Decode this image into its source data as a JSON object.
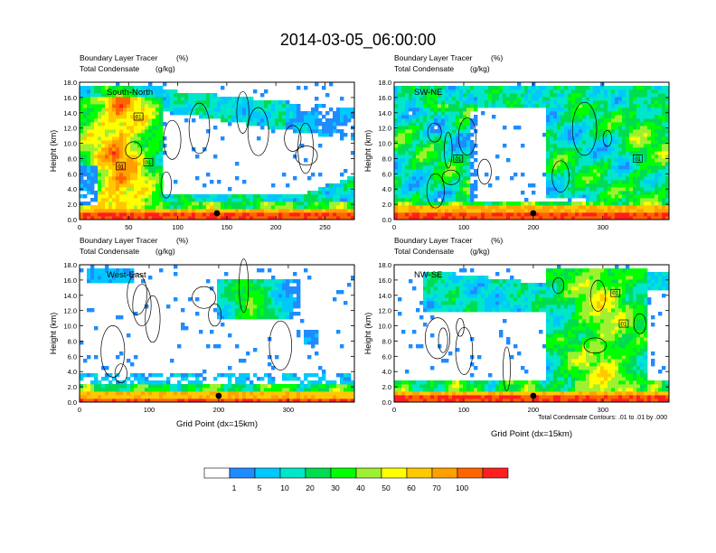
{
  "title": "2014-03-05_06:00:00",
  "chart_data": [
    {
      "type": "heatmap",
      "panel": "top-left",
      "label": "South-North",
      "title_line1": "Boundary Layer Tracer",
      "title_units1": "(%)",
      "title_line2": "Total Condensate",
      "title_units2": "(g/kg)",
      "ylabel": "Height (km)",
      "xlabel": "",
      "ylim": [
        0,
        18
      ],
      "yticks": [
        "0.0",
        "2.0",
        "4.0",
        "6.0",
        "8.0",
        "10.0",
        "12.0",
        "14.0",
        "16.0",
        "18.0"
      ],
      "xlim": [
        0,
        280
      ],
      "xticks": [
        "0",
        "50",
        "100",
        "150",
        "200",
        "250"
      ],
      "marker_x": 140,
      "contour_labels": [
        {
          "x": 60,
          "y": 13.5,
          "text": "01"
        },
        {
          "x": 42,
          "y": 7.0,
          "text": "01"
        },
        {
          "x": 70,
          "y": 7.5,
          "text": "01"
        }
      ]
    },
    {
      "type": "heatmap",
      "panel": "top-right",
      "label": "SW-NE",
      "title_line1": "Boundary Layer Tracer",
      "title_units1": "(%)",
      "title_line2": "Total Condensate",
      "title_units2": "(g/kg)",
      "ylabel": "Height (km)",
      "xlabel": "",
      "ylim": [
        0,
        18
      ],
      "yticks": [
        "0.0",
        "2.0",
        "4.0",
        "6.0",
        "8.0",
        "10.0",
        "12.0",
        "14.0",
        "16.0",
        "18.0"
      ],
      "xlim": [
        0,
        395
      ],
      "xticks": [
        "0",
        "100",
        "200",
        "300"
      ],
      "marker_x": 200,
      "contour_labels": [
        {
          "x": 92,
          "y": 8.0,
          "text": "01"
        },
        {
          "x": 350,
          "y": 8.0,
          "text": "01"
        }
      ]
    },
    {
      "type": "heatmap",
      "panel": "bottom-left",
      "label": "West-East",
      "title_line1": "Boundary Layer Tracer",
      "title_units1": "(%)",
      "title_line2": "Total Condensate",
      "title_units2": "(g/kg)",
      "ylabel": "Height (km)",
      "xlabel": "Grid Point (dx=15km)",
      "ylim": [
        0,
        18
      ],
      "yticks": [
        "0.0",
        "2.0",
        "4.0",
        "6.0",
        "8.0",
        "10.0",
        "12.0",
        "14.0",
        "16.0",
        "18.0"
      ],
      "xlim": [
        0,
        395
      ],
      "xticks": [
        "0",
        "100",
        "200",
        "300"
      ],
      "marker_x": 200,
      "contour_labels": []
    },
    {
      "type": "heatmap",
      "panel": "bottom-right",
      "label": "NW-SE",
      "title_line1": "Boundary Layer Tracer",
      "title_units1": "(%)",
      "title_line2": "Total Condensate",
      "title_units2": "(g/kg)",
      "ylabel": "Height (km)",
      "xlabel": "Grid Point (dx=15km)",
      "ylim": [
        0,
        18
      ],
      "yticks": [
        "0.0",
        "2.0",
        "4.0",
        "6.0",
        "8.0",
        "10.0",
        "12.0",
        "14.0",
        "16.0",
        "18.0"
      ],
      "xlim": [
        0,
        395
      ],
      "xticks": [
        "0",
        "100",
        "200",
        "300"
      ],
      "marker_x": 200,
      "contour_note": "Total Condensate Contours: .01 to .01 by .000",
      "contour_labels": [
        {
          "x": 318,
          "y": 14.3,
          "text": "01"
        },
        {
          "x": 330,
          "y": 10.3,
          "text": "01"
        }
      ]
    }
  ],
  "colorbar": {
    "colors": [
      "#ffffff",
      "#1e8cff",
      "#00c8ff",
      "#00e6c8",
      "#00dc50",
      "#00ff00",
      "#a0f032",
      "#ffff00",
      "#ffc800",
      "#ffa000",
      "#ff6400",
      "#ff1e1e"
    ],
    "labels": [
      "1",
      "5",
      "10",
      "20",
      "30",
      "40",
      "50",
      "60",
      "70",
      "100"
    ]
  }
}
